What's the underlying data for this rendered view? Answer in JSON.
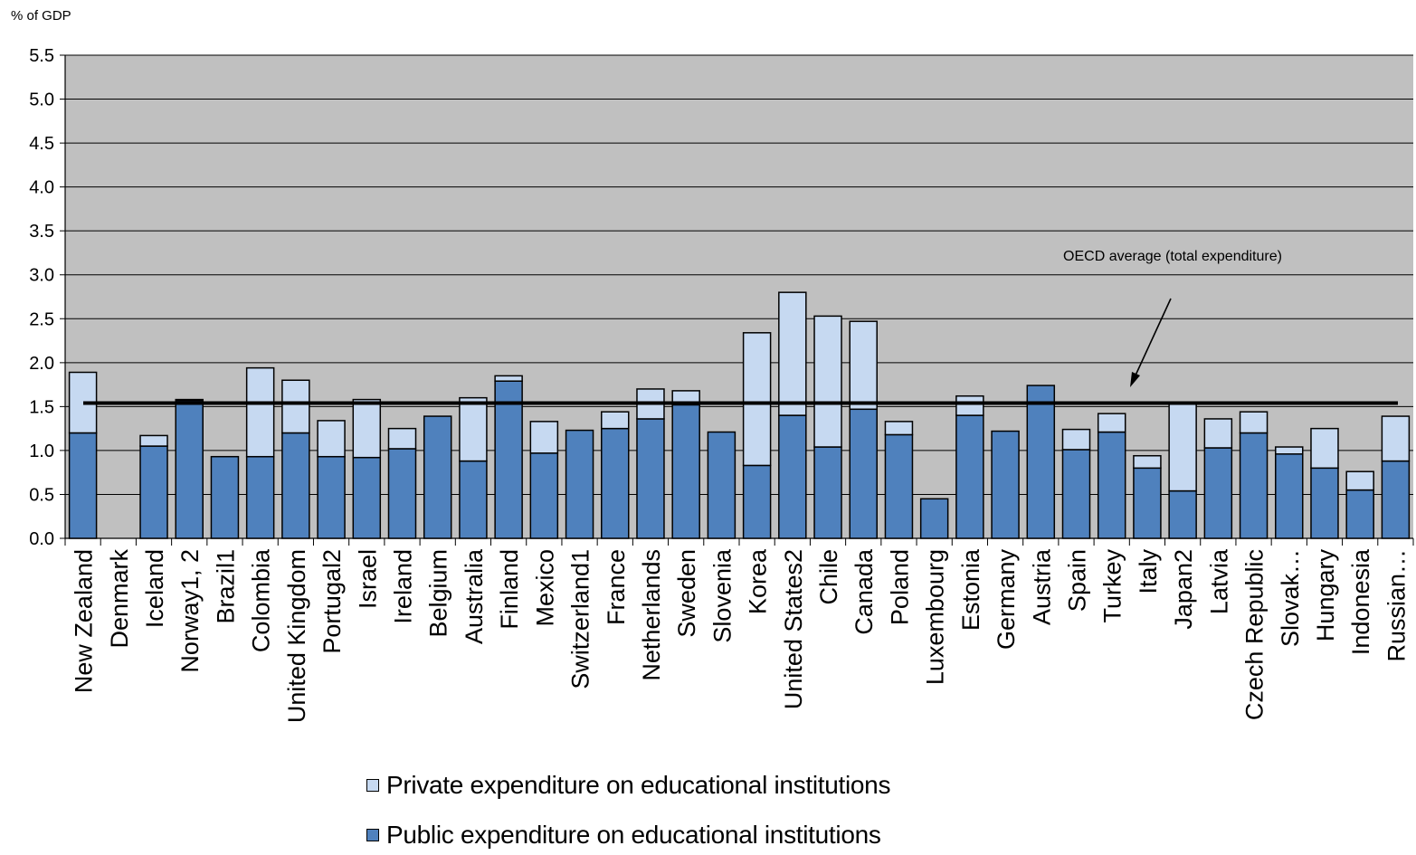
{
  "chart_data": {
    "type": "bar",
    "stacked": true,
    "ylabel": "% of GDP",
    "ylim": [
      0,
      5.5
    ],
    "yticks": [
      "0.0",
      "0.5",
      "1.0",
      "1.5",
      "2.0",
      "2.5",
      "3.0",
      "3.5",
      "4.0",
      "4.5",
      "5.0",
      "5.5"
    ],
    "grid": true,
    "plot_background": "#c0c0c0",
    "categories": [
      "New Zealand",
      "Denmark",
      "Iceland",
      "Norway1, 2",
      "Brazil1",
      "Colombia",
      "United Kingdom",
      "Portugal2",
      "Israel",
      "Ireland",
      "Belgium",
      "Australia",
      "Finland",
      "Mexico",
      "Switzerland1",
      "France",
      "Netherlands",
      "Sweden",
      "Slovenia",
      "Korea",
      "United States2",
      "Chile",
      "Canada",
      "Poland",
      "Luxembourg",
      "Estonia",
      "Germany",
      "Austria",
      "Spain",
      "Turkey",
      "Italy",
      "Japan2",
      "Latvia",
      "Czech Republic",
      "Slovak…",
      "Hungary",
      "Indonesia",
      "Russian…"
    ],
    "series": [
      {
        "name": "Public expenditure on educational institutions",
        "color": "#4f81bd",
        "values": [
          1.2,
          0,
          1.05,
          1.57,
          0.93,
          0.93,
          1.2,
          0.93,
          0.92,
          1.02,
          1.39,
          0.88,
          1.79,
          0.97,
          1.23,
          1.25,
          1.36,
          1.52,
          1.21,
          0.83,
          1.4,
          1.04,
          1.47,
          1.18,
          0.45,
          1.4,
          1.22,
          1.74,
          1.01,
          1.21,
          0.8,
          0.54,
          1.03,
          1.2,
          0.96,
          0.8,
          0.55,
          0.88
        ]
      },
      {
        "name": "Private expenditure on educational institutions",
        "color": "#c6d9f1",
        "values": [
          0.69,
          0,
          0.12,
          0.01,
          0,
          1.01,
          0.6,
          0.41,
          0.66,
          0.23,
          0,
          0.72,
          0.06,
          0.36,
          0,
          0.19,
          0.34,
          0.16,
          0,
          1.51,
          1.4,
          1.49,
          1.0,
          0.15,
          0,
          0.22,
          0,
          0,
          0.23,
          0.21,
          0.14,
          1.0,
          0.33,
          0.24,
          0.08,
          0.45,
          0.21,
          0.51
        ]
      }
    ],
    "reference_line": {
      "value": 1.54,
      "label": "OECD average (total expenditure)"
    },
    "legend": {
      "placement": "bottom"
    }
  }
}
